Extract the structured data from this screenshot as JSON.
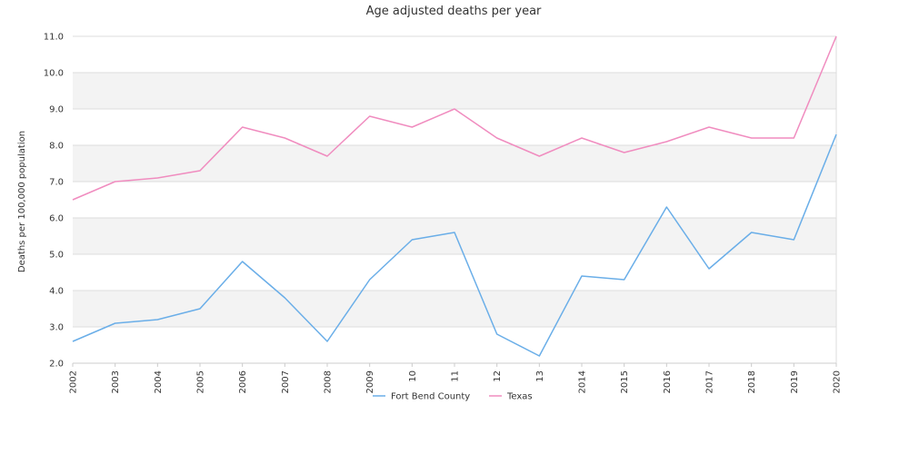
{
  "chart_data": {
    "type": "line",
    "title": "Age adjusted deaths per year",
    "xlabel": "",
    "ylabel": "Deaths per 100,000 population",
    "categories": [
      "2002",
      "2003",
      "2004",
      "2005",
      "2006",
      "2007",
      "2008",
      "2009",
      "2010",
      "2011",
      "2012",
      "2013",
      "2014",
      "2015",
      "2016",
      "2017",
      "2018",
      "2019",
      "2020"
    ],
    "x_tick_labels": [
      "2002",
      "2003",
      "2004",
      "2005",
      "2006",
      "2007",
      "2008",
      "2009",
      "10",
      "11",
      "12",
      "13",
      "2014",
      "2015",
      "2016",
      "2017",
      "2018",
      "2019",
      "2020"
    ],
    "ylim": [
      2.0,
      11.0
    ],
    "y_ticks": [
      "2.0",
      "3.0",
      "4.0",
      "5.0",
      "6.0",
      "7.0",
      "8.0",
      "9.0",
      "10.0",
      "11.0"
    ],
    "grid": "horizontal alternating bands",
    "legend_position": "bottom-center",
    "series": [
      {
        "name": "Fort Bend County",
        "color": "#6aaee8",
        "values": [
          2.6,
          3.1,
          3.2,
          3.5,
          4.8,
          3.8,
          2.6,
          4.3,
          5.4,
          5.6,
          2.8,
          2.2,
          4.4,
          4.3,
          6.3,
          4.6,
          5.6,
          5.4,
          8.3
        ]
      },
      {
        "name": "Texas",
        "color": "#f08cbf",
        "values": [
          6.5,
          7.0,
          7.1,
          7.3,
          8.5,
          8.2,
          7.7,
          8.8,
          8.5,
          9.0,
          8.2,
          7.7,
          8.2,
          7.8,
          8.1,
          8.5,
          8.2,
          8.2,
          11.0
        ]
      }
    ]
  }
}
